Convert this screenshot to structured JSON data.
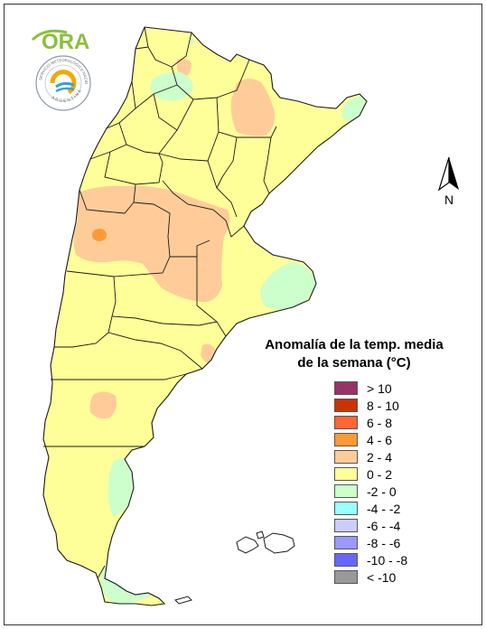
{
  "logos": {
    "ora_text": "ORA",
    "smn_seal_text": "SERVICIO METEOROLÓGICO NACIONAL",
    "smn_seal_country": "ARGENTINA"
  },
  "north_arrow": {
    "label": "N"
  },
  "legend": {
    "title_line1": "Anomalía de la temp. media",
    "title_line2": "de la semana (°C)",
    "items": [
      {
        "label": "> 10",
        "color": "#993366"
      },
      {
        "label": "8 - 10",
        "color": "#cc3300"
      },
      {
        "label": "6 - 8",
        "color": "#ff6633"
      },
      {
        "label": "4 - 6",
        "color": "#ff9933"
      },
      {
        "label": "2 - 4",
        "color": "#ffcc99"
      },
      {
        "label": "0 - 2",
        "color": "#ffff99"
      },
      {
        "label": "-2 - 0",
        "color": "#ccffcc"
      },
      {
        "label": "-4 - -2",
        "color": "#99ffff"
      },
      {
        "label": "-6 - -4",
        "color": "#ccccff"
      },
      {
        "label": "-8 - -6",
        "color": "#9999ff"
      },
      {
        "label": "-10 - -8",
        "color": "#6666ff"
      },
      {
        "label": "< -10",
        "color": "#999999"
      }
    ]
  }
}
